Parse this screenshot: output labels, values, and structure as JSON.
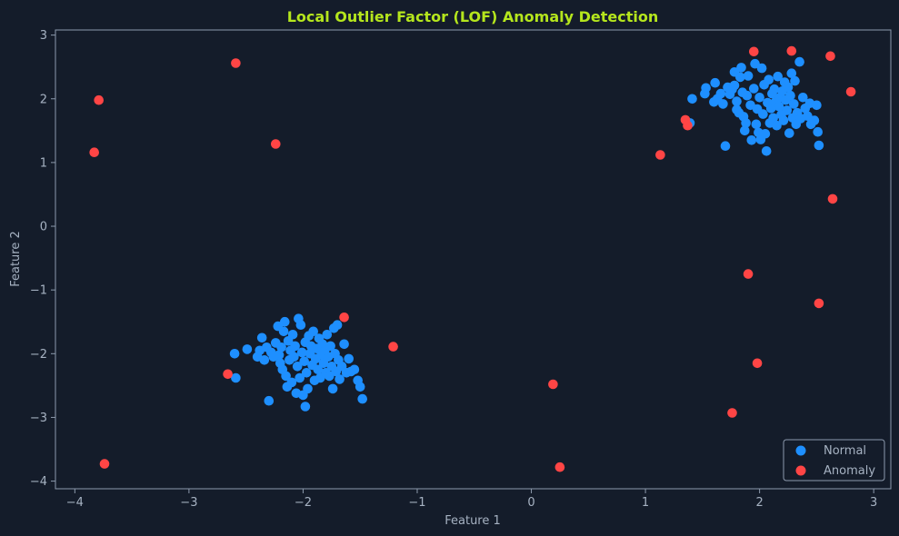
{
  "chart_data": {
    "type": "scatter",
    "title": "Local Outlier Factor (LOF) Anomaly Detection",
    "xlabel": "Feature 1",
    "ylabel": "Feature 2",
    "xlim": [
      -4.17,
      3.15
    ],
    "ylim": [
      -4.12,
      3.08
    ],
    "xticks": [
      -4,
      -3,
      -2,
      -1,
      0,
      1,
      2,
      3
    ],
    "yticks": [
      -4,
      -3,
      -2,
      -1,
      0,
      1,
      2,
      3
    ],
    "grid": false,
    "legend_position": "bottom-right",
    "series": [
      {
        "name": "Normal",
        "color": "#1e8fff",
        "points": [
          [
            1.39,
            1.62
          ],
          [
            1.41,
            2.0
          ],
          [
            1.52,
            2.08
          ],
          [
            1.53,
            2.17
          ],
          [
            1.6,
            1.95
          ],
          [
            1.63,
            2.0
          ],
          [
            1.61,
            2.25
          ],
          [
            1.66,
            2.08
          ],
          [
            1.68,
            1.92
          ],
          [
            1.7,
            1.26
          ],
          [
            1.72,
            2.18
          ],
          [
            1.74,
            2.07
          ],
          [
            1.76,
            2.15
          ],
          [
            1.78,
            2.42
          ],
          [
            1.78,
            2.21
          ],
          [
            1.8,
            1.83
          ],
          [
            1.8,
            1.96
          ],
          [
            1.82,
            1.78
          ],
          [
            1.83,
            2.34
          ],
          [
            1.84,
            2.49
          ],
          [
            1.85,
            2.1
          ],
          [
            1.86,
            1.72
          ],
          [
            1.87,
            1.5
          ],
          [
            1.88,
            1.62
          ],
          [
            1.89,
            2.05
          ],
          [
            1.9,
            2.36
          ],
          [
            1.92,
            1.9
          ],
          [
            1.93,
            1.35
          ],
          [
            1.95,
            2.16
          ],
          [
            1.96,
            2.55
          ],
          [
            1.97,
            1.6
          ],
          [
            1.98,
            1.84
          ],
          [
            1.99,
            1.47
          ],
          [
            2.0,
            2.02
          ],
          [
            2.01,
            1.36
          ],
          [
            2.02,
            2.48
          ],
          [
            2.03,
            1.76
          ],
          [
            2.04,
            2.22
          ],
          [
            2.05,
            1.45
          ],
          [
            2.06,
            1.18
          ],
          [
            2.07,
            1.94
          ],
          [
            2.08,
            2.3
          ],
          [
            2.09,
            1.62
          ],
          [
            2.1,
            1.85
          ],
          [
            2.11,
            2.08
          ],
          [
            2.12,
            1.7
          ],
          [
            2.13,
            2.15
          ],
          [
            2.14,
            1.95
          ],
          [
            2.15,
            1.58
          ],
          [
            2.16,
            2.35
          ],
          [
            2.17,
            1.88
          ],
          [
            2.18,
            2.02
          ],
          [
            2.19,
            1.75
          ],
          [
            2.2,
            2.12
          ],
          [
            2.21,
            1.66
          ],
          [
            2.22,
            2.26
          ],
          [
            2.23,
            1.98
          ],
          [
            2.24,
            1.82
          ],
          [
            2.25,
            2.18
          ],
          [
            2.26,
            1.46
          ],
          [
            2.27,
            2.05
          ],
          [
            2.28,
            2.4
          ],
          [
            2.29,
            1.7
          ],
          [
            2.3,
            1.92
          ],
          [
            2.31,
            2.28
          ],
          [
            2.32,
            1.6
          ],
          [
            2.33,
            1.78
          ],
          [
            2.35,
            2.58
          ],
          [
            2.36,
            1.69
          ],
          [
            2.38,
            2.02
          ],
          [
            2.4,
            1.85
          ],
          [
            2.42,
            1.73
          ],
          [
            2.44,
            1.93
          ],
          [
            2.45,
            1.6
          ],
          [
            2.48,
            1.66
          ],
          [
            2.5,
            1.9
          ],
          [
            2.51,
            1.48
          ],
          [
            2.52,
            1.27
          ],
          [
            -2.6,
            -2.0
          ],
          [
            -2.59,
            -2.38
          ],
          [
            -2.49,
            -1.93
          ],
          [
            -2.4,
            -2.05
          ],
          [
            -2.38,
            -1.95
          ],
          [
            -2.36,
            -1.75
          ],
          [
            -2.34,
            -2.1
          ],
          [
            -2.32,
            -1.9
          ],
          [
            -2.3,
            -2.74
          ],
          [
            -2.28,
            -1.98
          ],
          [
            -2.26,
            -2.05
          ],
          [
            -2.24,
            -1.83
          ],
          [
            -2.22,
            -1.57
          ],
          [
            -2.21,
            -2.02
          ],
          [
            -2.2,
            -2.15
          ],
          [
            -2.19,
            -1.9
          ],
          [
            -2.18,
            -2.25
          ],
          [
            -2.17,
            -1.65
          ],
          [
            -2.16,
            -1.5
          ],
          [
            -2.15,
            -2.35
          ],
          [
            -2.14,
            -2.52
          ],
          [
            -2.13,
            -1.8
          ],
          [
            -2.12,
            -2.1
          ],
          [
            -2.11,
            -1.95
          ],
          [
            -2.1,
            -2.45
          ],
          [
            -2.09,
            -1.7
          ],
          [
            -2.08,
            -2.05
          ],
          [
            -2.07,
            -1.88
          ],
          [
            -2.06,
            -2.62
          ],
          [
            -2.05,
            -2.2
          ],
          [
            -2.04,
            -1.45
          ],
          [
            -2.03,
            -2.38
          ],
          [
            -2.02,
            -1.55
          ],
          [
            -2.01,
            -1.98
          ],
          [
            -2.0,
            -2.65
          ],
          [
            -1.99,
            -2.12
          ],
          [
            -1.98,
            -1.82
          ],
          [
            -1.97,
            -2.3
          ],
          [
            -1.96,
            -2.55
          ],
          [
            -1.95,
            -1.72
          ],
          [
            -1.94,
            -2.0
          ],
          [
            -1.93,
            -1.88
          ],
          [
            -1.92,
            -2.18
          ],
          [
            -1.91,
            -1.65
          ],
          [
            -1.9,
            -2.42
          ],
          [
            -1.89,
            -2.08
          ],
          [
            -1.88,
            -1.92
          ],
          [
            -1.87,
            -2.25
          ],
          [
            -1.86,
            -1.76
          ],
          [
            -1.85,
            -2.38
          ],
          [
            -1.84,
            -2.02
          ],
          [
            -1.83,
            -1.85
          ],
          [
            -1.82,
            -2.15
          ],
          [
            -1.81,
            -1.95
          ],
          [
            -1.8,
            -2.3
          ],
          [
            -1.79,
            -1.7
          ],
          [
            -1.78,
            -2.05
          ],
          [
            -1.77,
            -2.35
          ],
          [
            -1.76,
            -1.88
          ],
          [
            -1.75,
            -2.2
          ],
          [
            -1.74,
            -2.55
          ],
          [
            -1.73,
            -1.6
          ],
          [
            -1.72,
            -2.0
          ],
          [
            -1.71,
            -2.28
          ],
          [
            -1.7,
            -1.55
          ],
          [
            -1.69,
            -2.1
          ],
          [
            -1.68,
            -2.4
          ],
          [
            -1.66,
            -2.2
          ],
          [
            -1.64,
            -1.85
          ],
          [
            -1.62,
            -2.3
          ],
          [
            -1.6,
            -2.08
          ],
          [
            -1.58,
            -2.28
          ],
          [
            -1.55,
            -2.25
          ],
          [
            -1.52,
            -2.42
          ],
          [
            -1.5,
            -2.52
          ],
          [
            -1.48,
            -2.71
          ],
          [
            -1.98,
            -2.83
          ]
        ]
      },
      {
        "name": "Anomaly",
        "color": "#ff4545",
        "points": [
          [
            -3.83,
            1.16
          ],
          [
            -3.79,
            1.98
          ],
          [
            -3.74,
            -3.73
          ],
          [
            -2.59,
            2.56
          ],
          [
            -2.24,
            1.29
          ],
          [
            -2.66,
            -2.32
          ],
          [
            -1.64,
            -1.43
          ],
          [
            -1.21,
            -1.89
          ],
          [
            0.19,
            -2.48
          ],
          [
            0.25,
            -3.78
          ],
          [
            1.13,
            1.12
          ],
          [
            1.35,
            1.67
          ],
          [
            1.37,
            1.58
          ],
          [
            1.76,
            -2.93
          ],
          [
            1.9,
            -0.75
          ],
          [
            1.95,
            2.74
          ],
          [
            1.98,
            -2.15
          ],
          [
            2.28,
            2.75
          ],
          [
            2.52,
            -1.21
          ],
          [
            2.62,
            2.67
          ],
          [
            2.64,
            0.43
          ],
          [
            2.8,
            2.11
          ]
        ]
      }
    ]
  },
  "theme": {
    "background": "#141c2a",
    "spine": "#8d9aad",
    "text": "#a6b2c2",
    "title_color": "#b5e61d"
  }
}
